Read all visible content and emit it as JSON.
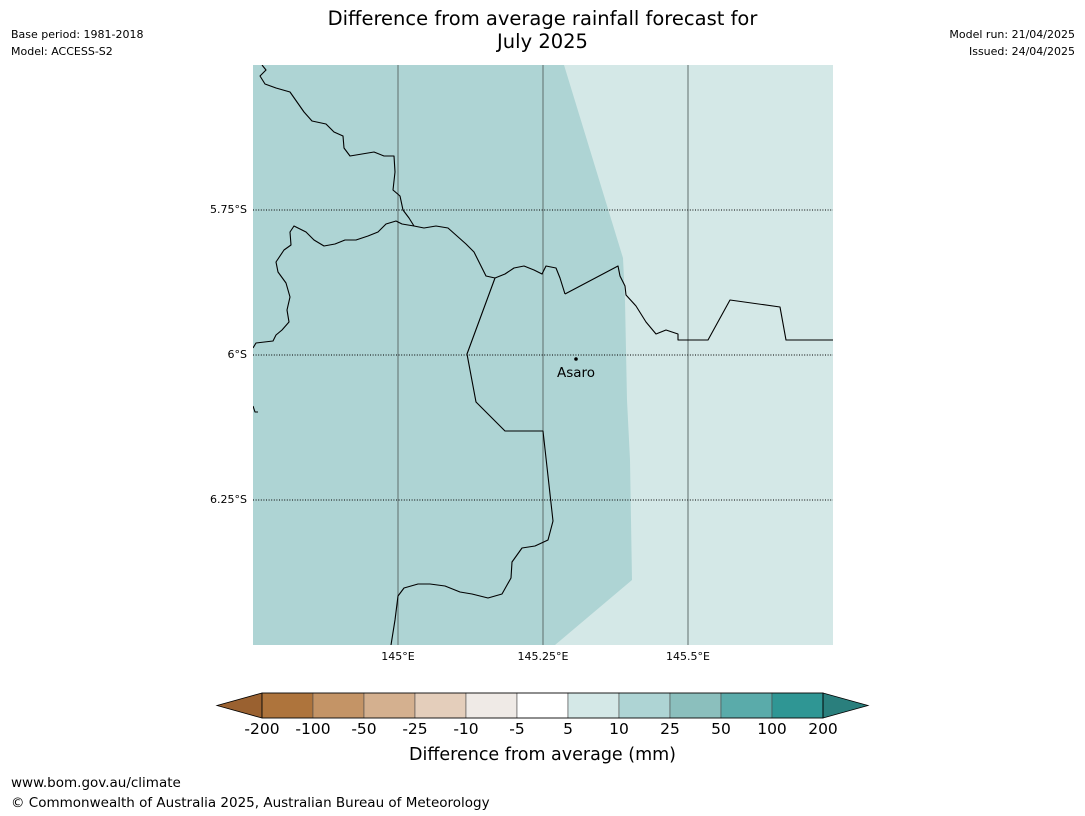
{
  "title_line1": "Difference from average rainfall forecast for",
  "title_line2": "July 2025",
  "meta_left": {
    "base_period": "Base period: 1981-2018",
    "model": "Model: ACCESS-S2"
  },
  "meta_right": {
    "model_run": "Model run: 21/04/2025",
    "issued": "Issued: 24/04/2025"
  },
  "map": {
    "latitude_labels": [
      "5.75°S",
      "6°S",
      "6.25°S"
    ],
    "longitude_labels": [
      "145°E",
      "145.25°E",
      "145.5°E"
    ],
    "place": {
      "name": "Asaro"
    },
    "fill_colors": {
      "class_10_25": "#aed4d4",
      "class_5_10": "#d4e8e7"
    }
  },
  "colorbar": {
    "tick_labels": [
      "-200",
      "-100",
      "-50",
      "-25",
      "-10",
      "-5",
      "5",
      "10",
      "25",
      "50",
      "100",
      "200"
    ],
    "colors": [
      "#9a6130",
      "#ae743c",
      "#c49466",
      "#d4b08f",
      "#e4cebb",
      "#efeae6",
      "#ffffff",
      "#d4e8e7",
      "#aed4d4",
      "#8bbfbd",
      "#5aabaa",
      "#2f9694",
      "#2a7f7d"
    ],
    "label": "Difference from average (mm)"
  },
  "footer": {
    "url": "www.bom.gov.au/climate",
    "copyright": "© Commonwealth of Australia 2025, Australian Bureau of Meteorology"
  }
}
